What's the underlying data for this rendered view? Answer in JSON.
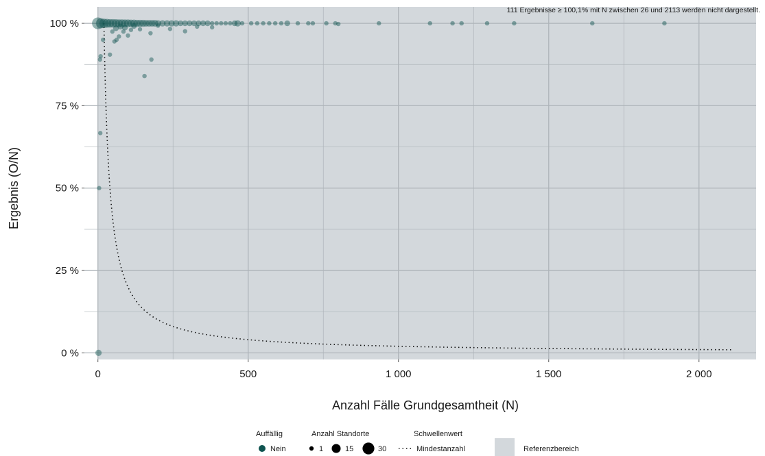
{
  "chart_data": {
    "type": "scatter",
    "xlabel": "Anzahl Fälle Grundgesamtheit (N)",
    "ylabel": "Ergebnis (O/N)",
    "annotation": "111 Ergebnisse ≥ 100,1% mit N zwischen 26 und 2113 werden nicht dargestellt.",
    "xlim": [
      -45,
      2190
    ],
    "ylim": [
      -2,
      105
    ],
    "x_ticks": [
      0,
      500,
      1000,
      1500,
      2000
    ],
    "x_tick_labels": [
      "0",
      "500",
      "1 000",
      "1 500",
      "2 000"
    ],
    "y_ticks": [
      0,
      25,
      50,
      75,
      100
    ],
    "y_tick_labels": [
      "0 %",
      "25 %",
      "50 %",
      "75 %",
      "100 %"
    ],
    "reference_range": [
      0,
      100
    ],
    "threshold_curve": {
      "name": "Mindestanzahl",
      "formula": "20/N",
      "n_min": 20,
      "n_max": 2113
    },
    "points": [
      {
        "x": 2,
        "y": 0,
        "n": 3
      },
      {
        "x": 4,
        "y": 50,
        "n": 1
      },
      {
        "x": 8,
        "y": 66.7,
        "n": 1
      },
      {
        "x": 7,
        "y": 89,
        "n": 1
      },
      {
        "x": 9,
        "y": 90,
        "n": 1
      },
      {
        "x": 17,
        "y": 95,
        "n": 1
      },
      {
        "x": 40,
        "y": 90.5,
        "n": 1
      },
      {
        "x": 48,
        "y": 97.5,
        "n": 1
      },
      {
        "x": 55,
        "y": 94.5,
        "n": 1
      },
      {
        "x": 62,
        "y": 95,
        "n": 1
      },
      {
        "x": 70,
        "y": 96,
        "n": 1
      },
      {
        "x": 85,
        "y": 97.5,
        "n": 1
      },
      {
        "x": 100,
        "y": 96.3,
        "n": 1
      },
      {
        "x": 110,
        "y": 98,
        "n": 1
      },
      {
        "x": 140,
        "y": 98.2,
        "n": 1
      },
      {
        "x": 155,
        "y": 84,
        "n": 1
      },
      {
        "x": 175,
        "y": 97,
        "n": 1
      },
      {
        "x": 178,
        "y": 89,
        "n": 1
      },
      {
        "x": 240,
        "y": 98.3,
        "n": 1
      },
      {
        "x": 290,
        "y": 97.6,
        "n": 1
      },
      {
        "x": 330,
        "y": 99,
        "n": 1
      },
      {
        "x": 380,
        "y": 98.8,
        "n": 1
      },
      {
        "x": 60,
        "y": 98.5,
        "n": 2
      },
      {
        "x": 75,
        "y": 99,
        "n": 2
      },
      {
        "x": 90,
        "y": 98.7,
        "n": 2
      },
      {
        "x": 120,
        "y": 99.2,
        "n": 2
      },
      {
        "x": 200,
        "y": 99.3,
        "n": 1
      },
      {
        "x": 0,
        "y": 100,
        "n": 30
      },
      {
        "x": 10,
        "y": 100,
        "n": 18
      },
      {
        "x": 20,
        "y": 100,
        "n": 14
      },
      {
        "x": 30,
        "y": 100,
        "n": 12
      },
      {
        "x": 40,
        "y": 100,
        "n": 10
      },
      {
        "x": 50,
        "y": 100,
        "n": 10
      },
      {
        "x": 60,
        "y": 100,
        "n": 9
      },
      {
        "x": 70,
        "y": 100,
        "n": 8
      },
      {
        "x": 80,
        "y": 100,
        "n": 8
      },
      {
        "x": 90,
        "y": 100,
        "n": 7
      },
      {
        "x": 100,
        "y": 100,
        "n": 7
      },
      {
        "x": 110,
        "y": 100,
        "n": 6
      },
      {
        "x": 120,
        "y": 100,
        "n": 6
      },
      {
        "x": 130,
        "y": 100,
        "n": 5
      },
      {
        "x": 140,
        "y": 100,
        "n": 5
      },
      {
        "x": 150,
        "y": 100,
        "n": 5
      },
      {
        "x": 160,
        "y": 100,
        "n": 4
      },
      {
        "x": 170,
        "y": 100,
        "n": 4
      },
      {
        "x": 180,
        "y": 100,
        "n": 4
      },
      {
        "x": 190,
        "y": 100,
        "n": 4
      },
      {
        "x": 200,
        "y": 100,
        "n": 3
      },
      {
        "x": 215,
        "y": 100,
        "n": 3
      },
      {
        "x": 230,
        "y": 100,
        "n": 3
      },
      {
        "x": 245,
        "y": 100,
        "n": 3
      },
      {
        "x": 260,
        "y": 100,
        "n": 3
      },
      {
        "x": 275,
        "y": 100,
        "n": 2
      },
      {
        "x": 290,
        "y": 100,
        "n": 2
      },
      {
        "x": 305,
        "y": 100,
        "n": 2
      },
      {
        "x": 320,
        "y": 100,
        "n": 2
      },
      {
        "x": 335,
        "y": 100,
        "n": 2
      },
      {
        "x": 350,
        "y": 100,
        "n": 2
      },
      {
        "x": 365,
        "y": 100,
        "n": 2
      },
      {
        "x": 380,
        "y": 100,
        "n": 1
      },
      {
        "x": 395,
        "y": 100,
        "n": 1
      },
      {
        "x": 410,
        "y": 100,
        "n": 1
      },
      {
        "x": 425,
        "y": 100,
        "n": 1
      },
      {
        "x": 440,
        "y": 100,
        "n": 1
      },
      {
        "x": 455,
        "y": 100,
        "n": 2
      },
      {
        "x": 465,
        "y": 100,
        "n": 3
      },
      {
        "x": 480,
        "y": 100,
        "n": 1
      },
      {
        "x": 510,
        "y": 100,
        "n": 1
      },
      {
        "x": 530,
        "y": 100,
        "n": 1
      },
      {
        "x": 550,
        "y": 100,
        "n": 1
      },
      {
        "x": 570,
        "y": 100,
        "n": 1
      },
      {
        "x": 590,
        "y": 100,
        "n": 1
      },
      {
        "x": 610,
        "y": 100,
        "n": 1
      },
      {
        "x": 630,
        "y": 100,
        "n": 2
      },
      {
        "x": 665,
        "y": 100,
        "n": 1
      },
      {
        "x": 700,
        "y": 100,
        "n": 1
      },
      {
        "x": 715,
        "y": 100,
        "n": 1
      },
      {
        "x": 760,
        "y": 100,
        "n": 1
      },
      {
        "x": 790,
        "y": 100,
        "n": 1
      },
      {
        "x": 800,
        "y": 99.8,
        "n": 1
      },
      {
        "x": 935,
        "y": 100,
        "n": 1
      },
      {
        "x": 1105,
        "y": 100,
        "n": 1
      },
      {
        "x": 1180,
        "y": 100,
        "n": 1
      },
      {
        "x": 1210,
        "y": 100,
        "n": 1
      },
      {
        "x": 1295,
        "y": 100,
        "n": 1
      },
      {
        "x": 1385,
        "y": 100,
        "n": 1
      },
      {
        "x": 1645,
        "y": 100,
        "n": 1
      },
      {
        "x": 1885,
        "y": 100,
        "n": 1
      }
    ]
  },
  "legend": {
    "auffaellig_title": "Auffällig",
    "auffaellig_item": "Nein",
    "standorte_title": "Anzahl Standorte",
    "standorte_items": [
      "1",
      "15",
      "30"
    ],
    "schwellenwert_title": "Schwellenwert",
    "schwellenwert_item": "Mindestanzahl",
    "referenz_item": "Referenzbereich"
  },
  "colors": {
    "point": "#0f5450",
    "panel": "#d3d8dc",
    "grid": "#aeb4b9",
    "legend_box": "#d3d8dc"
  }
}
